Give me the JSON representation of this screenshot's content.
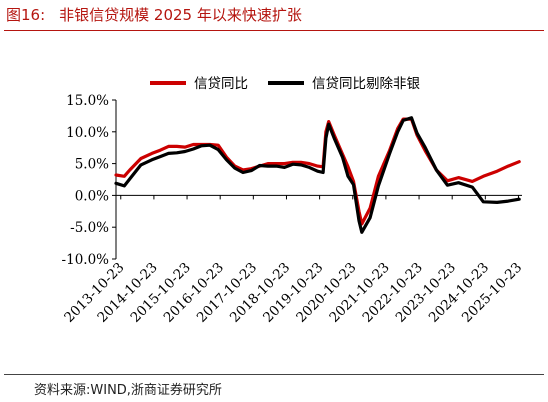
{
  "figure": {
    "label": "图16:",
    "title": "非银信贷规模 2025 年以来快速扩张"
  },
  "source": "资料来源:WIND,浙商证券研究所",
  "colors": {
    "title": "#b5150f",
    "series1": "#cc0000",
    "series2": "#000000"
  },
  "chart_data": {
    "type": "line",
    "ylim": [
      -10,
      15
    ],
    "yticks": [
      {
        "value": 15,
        "label": "15.0%"
      },
      {
        "value": 10,
        "label": "10.0%"
      },
      {
        "value": 5,
        "label": "5.0%"
      },
      {
        "value": 0,
        "label": "0.0%"
      },
      {
        "value": -5,
        "label": "-5.0%"
      },
      {
        "value": -10,
        "label": "-10.0%"
      }
    ],
    "xlim": [
      "2013-09",
      "2025-12"
    ],
    "xticks": [
      "2013-10-23",
      "2014-10-23",
      "2015-10-23",
      "2016-10-23",
      "2017-10-23",
      "2018-10-23",
      "2019-10-23",
      "2020-10-23",
      "2021-10-23",
      "2022-10-23",
      "2023-10-23",
      "2024-10-23",
      "2025-10-23"
    ],
    "legend": "top",
    "grid": false,
    "series": [
      {
        "name": "信贷同比",
        "color": "#cc0000",
        "points": [
          [
            "2013-09",
            3.2
          ],
          [
            "2013-12",
            3.0
          ],
          [
            "2014-02",
            4.0
          ],
          [
            "2014-06",
            5.8
          ],
          [
            "2014-10",
            6.6
          ],
          [
            "2015-01",
            7.1
          ],
          [
            "2015-04",
            7.7
          ],
          [
            "2015-07",
            7.7
          ],
          [
            "2015-10",
            7.6
          ],
          [
            "2016-01",
            8.0
          ],
          [
            "2016-04",
            8.0
          ],
          [
            "2016-07",
            8.0
          ],
          [
            "2016-10",
            7.9
          ],
          [
            "2017-01",
            6.0
          ],
          [
            "2017-04",
            4.6
          ],
          [
            "2017-07",
            4.0
          ],
          [
            "2017-10",
            4.2
          ],
          [
            "2018-01",
            4.6
          ],
          [
            "2018-04",
            5.0
          ],
          [
            "2018-07",
            5.0
          ],
          [
            "2018-10",
            5.0
          ],
          [
            "2019-01",
            5.2
          ],
          [
            "2019-04",
            5.2
          ],
          [
            "2019-07",
            5.0
          ],
          [
            "2019-10",
            4.6
          ],
          [
            "2019-12",
            4.5
          ],
          [
            "2020-01",
            10.0
          ],
          [
            "2020-02",
            11.6
          ],
          [
            "2020-04",
            9.5
          ],
          [
            "2020-07",
            6.5
          ],
          [
            "2020-09",
            4.5
          ],
          [
            "2020-11",
            2.2
          ],
          [
            "2021-01",
            -2.5
          ],
          [
            "2021-02",
            -4.5
          ],
          [
            "2021-05",
            -2.0
          ],
          [
            "2021-08",
            3.0
          ],
          [
            "2021-12",
            7.0
          ],
          [
            "2022-03",
            10.5
          ],
          [
            "2022-05",
            12.0
          ],
          [
            "2022-08",
            12.0
          ],
          [
            "2022-10",
            9.5
          ],
          [
            "2023-01",
            7.0
          ],
          [
            "2023-05",
            4.0
          ],
          [
            "2023-09",
            2.3
          ],
          [
            "2024-01",
            2.8
          ],
          [
            "2024-06",
            2.2
          ],
          [
            "2024-10",
            3.0
          ],
          [
            "2025-03",
            3.8
          ],
          [
            "2025-07",
            4.6
          ],
          [
            "2025-11",
            5.3
          ]
        ]
      },
      {
        "name": "信贷同比剔除非银",
        "color": "#000000",
        "points": [
          [
            "2013-09",
            1.9
          ],
          [
            "2013-12",
            1.5
          ],
          [
            "2014-02",
            2.6
          ],
          [
            "2014-06",
            4.8
          ],
          [
            "2014-10",
            5.6
          ],
          [
            "2015-01",
            6.1
          ],
          [
            "2015-04",
            6.6
          ],
          [
            "2015-07",
            6.7
          ],
          [
            "2015-10",
            6.9
          ],
          [
            "2016-01",
            7.3
          ],
          [
            "2016-04",
            7.8
          ],
          [
            "2016-07",
            7.9
          ],
          [
            "2016-10",
            7.2
          ],
          [
            "2017-01",
            5.6
          ],
          [
            "2017-04",
            4.3
          ],
          [
            "2017-07",
            3.6
          ],
          [
            "2017-10",
            3.9
          ],
          [
            "2018-01",
            4.7
          ],
          [
            "2018-04",
            4.6
          ],
          [
            "2018-07",
            4.6
          ],
          [
            "2018-10",
            4.4
          ],
          [
            "2019-01",
            4.9
          ],
          [
            "2019-04",
            4.8
          ],
          [
            "2019-07",
            4.4
          ],
          [
            "2019-10",
            3.8
          ],
          [
            "2019-12",
            3.6
          ],
          [
            "2020-01",
            9.0
          ],
          [
            "2020-02",
            11.2
          ],
          [
            "2020-04",
            9.0
          ],
          [
            "2020-07",
            6.0
          ],
          [
            "2020-09",
            3.0
          ],
          [
            "2020-11",
            1.7
          ],
          [
            "2021-01",
            -4.0
          ],
          [
            "2021-02",
            -5.8
          ],
          [
            "2021-05",
            -3.5
          ],
          [
            "2021-08",
            1.5
          ],
          [
            "2021-12",
            6.5
          ],
          [
            "2022-03",
            10.0
          ],
          [
            "2022-05",
            11.8
          ],
          [
            "2022-08",
            12.2
          ],
          [
            "2022-10",
            9.8
          ],
          [
            "2023-01",
            7.5
          ],
          [
            "2023-05",
            4.0
          ],
          [
            "2023-09",
            1.6
          ],
          [
            "2024-01",
            2.0
          ],
          [
            "2024-06",
            1.3
          ],
          [
            "2024-10",
            -1.0
          ],
          [
            "2025-03",
            -1.1
          ],
          [
            "2025-07",
            -0.9
          ],
          [
            "2025-11",
            -0.6
          ]
        ]
      }
    ]
  }
}
